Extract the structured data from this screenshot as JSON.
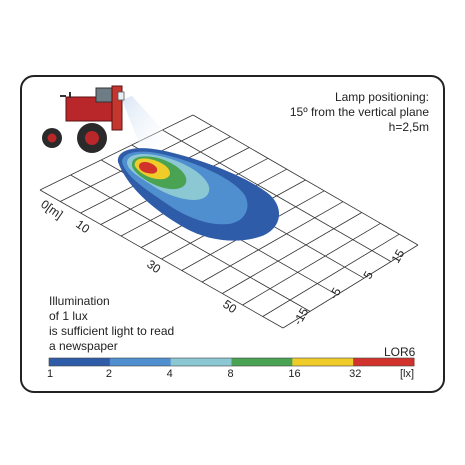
{
  "positioning": {
    "line1": "Lamp positioning:",
    "line2": "15º from the vertical plane",
    "line3": "h=2,5m"
  },
  "axis": {
    "x_unit_label": "0[m]",
    "x_ticks": [
      "10",
      "30",
      "50"
    ],
    "y_ticks": [
      "15",
      "5",
      "-5",
      "-15"
    ]
  },
  "note": {
    "line1": "Illumination",
    "line2": "of 1 lux",
    "line3": "is sufficient light to read",
    "line4": "a newspaper"
  },
  "model": "LOR6",
  "scale": {
    "unit": "[lx]",
    "labels": [
      "1",
      "2",
      "4",
      "8",
      "16",
      "32"
    ],
    "colors": [
      "#2f5ca8",
      "#4f8fd0",
      "#8cc7d4",
      "#4aa352",
      "#f0cc2a",
      "#d2322c"
    ]
  }
}
